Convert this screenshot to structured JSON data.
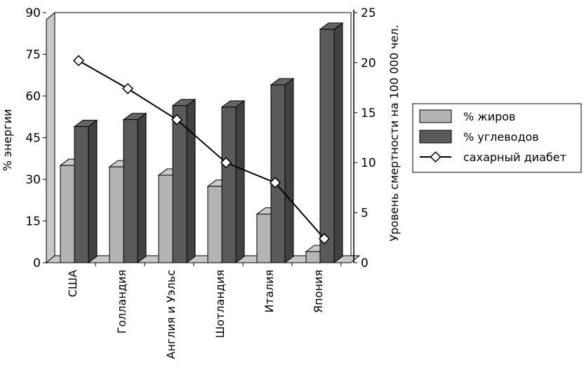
{
  "chart_data": {
    "type": "bar",
    "categories": [
      "США",
      "Голландия",
      "Англия и Уэльс",
      "Шотландия",
      "Италия",
      "Япония"
    ],
    "series": [
      {
        "name": "% жиров",
        "axis": "left",
        "kind": "bar3d",
        "color": "#b4b4b4",
        "values": [
          35,
          34.5,
          31.5,
          27.5,
          17.5,
          4
        ]
      },
      {
        "name": "% углеводов",
        "axis": "left",
        "kind": "bar3d",
        "color": "#5a5a5a",
        "values": [
          49,
          51.5,
          56.5,
          56,
          64,
          84
        ]
      },
      {
        "name": "сахарный диабет",
        "axis": "right",
        "kind": "line",
        "marker": "diamond",
        "color": "#000000",
        "values": [
          20.2,
          17.4,
          14.3,
          10,
          8,
          2.4
        ]
      }
    ],
    "ylabel": "% энергии",
    "ylim": [
      0,
      90
    ],
    "yticks": [
      "0",
      "15",
      "30",
      "45",
      "60",
      "75",
      "90"
    ],
    "y2label": "Уровень смертности на 100 000 чел.",
    "y2lim": [
      0,
      25
    ],
    "y2ticks": [
      "0",
      "5",
      "10",
      "15",
      "20",
      "25"
    ],
    "legend": "right",
    "grid": false
  }
}
